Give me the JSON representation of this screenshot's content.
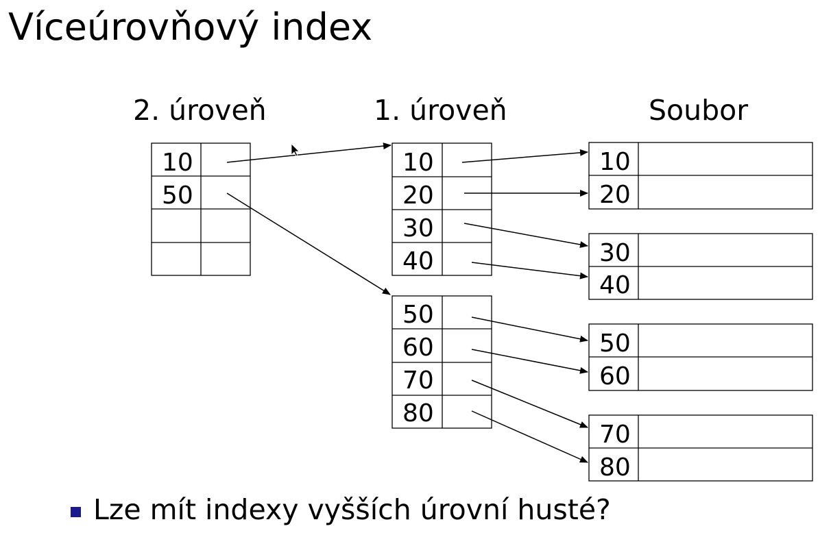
{
  "title": "Víceúrovňový index",
  "levels": {
    "level2": {
      "label": "2. úroveň",
      "keys": [
        "10",
        "50",
        "",
        ""
      ]
    },
    "level1": {
      "label": "1. úroveň",
      "blocks": [
        {
          "keys": [
            "10",
            "20",
            "30",
            "40"
          ]
        },
        {
          "keys": [
            "50",
            "60",
            "70",
            "80"
          ]
        }
      ]
    },
    "file": {
      "label": "Soubor",
      "blocks": [
        {
          "keys": [
            "10",
            "20"
          ]
        },
        {
          "keys": [
            "30",
            "40"
          ]
        },
        {
          "keys": [
            "50",
            "60"
          ]
        },
        {
          "keys": [
            "70",
            "80"
          ]
        }
      ]
    }
  },
  "bullet": {
    "text": "Lze mít indexy vyšších úrovní husté?",
    "color": "#1a1a8c"
  }
}
